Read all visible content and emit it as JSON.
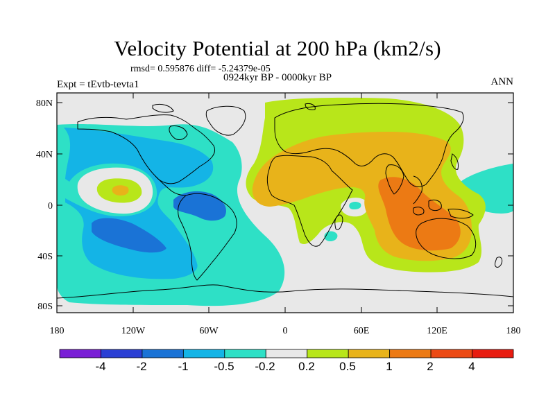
{
  "title": "Velocity Potential at 200 hPa (km2/s)",
  "stats_line": "rmsd= 0.595876 diff= -5.24379e-05",
  "experiment": "Expt = tEvtb-tevta1",
  "period": "0924kyr BP - 0000kyr BP",
  "season": "ANN",
  "axes": {
    "y_ticks": [
      "80N",
      "40N",
      "0",
      "40S",
      "80S"
    ],
    "x_ticks": [
      "180",
      "120W",
      "60W",
      "0",
      "60E",
      "120E",
      "180"
    ]
  },
  "colorbar": {
    "labels": [
      "-4",
      "-2",
      "-1",
      "-0.5",
      "-0.2",
      "0.2",
      "0.5",
      "1",
      "2",
      "4"
    ],
    "colors": [
      "#7a1fd6",
      "#2b3fd4",
      "#1a73d6",
      "#14b4e6",
      "#2ee0c6",
      "#e8e8e8",
      "#b8e61a",
      "#e8b31a",
      "#ec7a14",
      "#ec4a14",
      "#e81c10"
    ]
  },
  "colors": {
    "ocean_bg": "#e8e8e8",
    "neg_02": "#2ee0c6",
    "neg_05": "#14b4e6",
    "neg_1": "#1a73d6",
    "pos_02": "#b8e61a",
    "pos_05": "#e8b31a",
    "pos_1": "#ec7a14"
  }
}
